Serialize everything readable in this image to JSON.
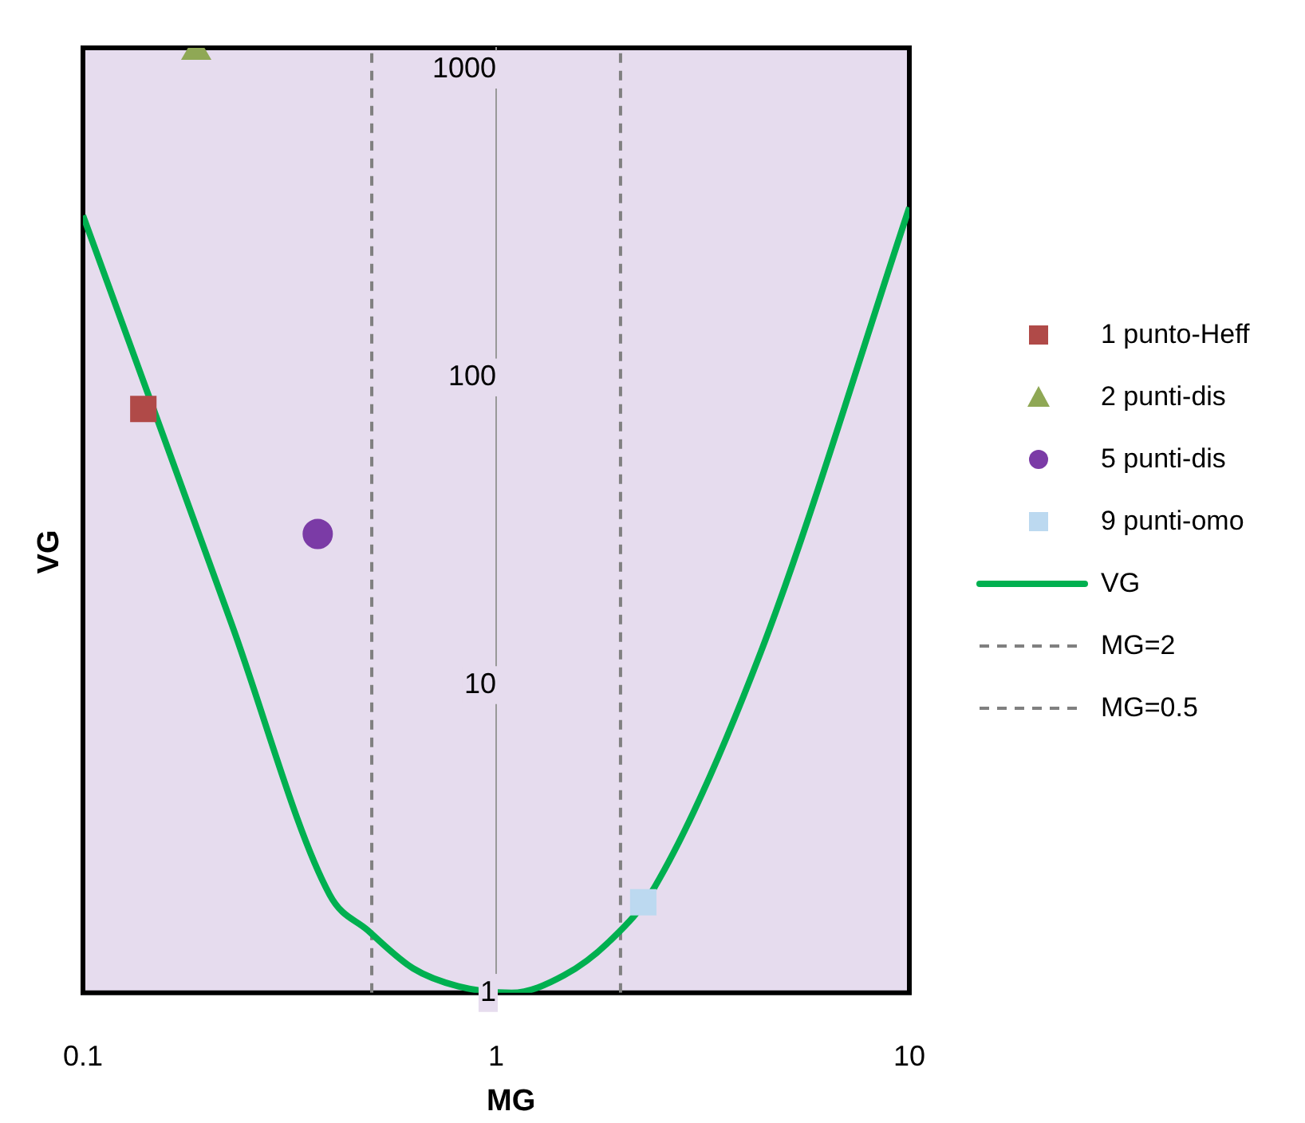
{
  "chart_data": {
    "type": "scatter",
    "xlabel": "MG",
    "ylabel": "VG",
    "log": "xy",
    "xlim": [
      0.1,
      10
    ],
    "xticks": [
      0.1,
      1,
      10
    ],
    "ylim": [
      1,
      1178
    ],
    "yticks": [
      1,
      10,
      100,
      1000
    ],
    "grid": false,
    "legend": "right",
    "series": [
      {
        "name": "1 punto-Heff",
        "type": "scatter",
        "marker": "square",
        "color": "#b04a48",
        "x": [
          0.14
        ],
        "values": [
          79
        ]
      },
      {
        "name": "2 punti-dis",
        "type": "scatter",
        "marker": "triangle",
        "color": "#8fa855",
        "x": [
          0.188
        ],
        "values": [
          1150
        ]
      },
      {
        "name": "5 punti-dis",
        "type": "scatter",
        "marker": "circle",
        "color": "#7b3ba6",
        "x": [
          0.37
        ],
        "values": [
          31
        ]
      },
      {
        "name": "9 punti-omo",
        "type": "scatter",
        "marker": "square",
        "color": "#bcd9f0",
        "x": [
          2.27
        ],
        "values": [
          1.97
        ]
      },
      {
        "name": "VG",
        "type": "line",
        "marker": "none",
        "color": "#00b050",
        "x": [
          0.1,
          0.15,
          0.229,
          0.395,
          0.488,
          0.63,
          0.81,
          1.09,
          1.46,
          1.88,
          2.42,
          4.37,
          10
        ],
        "values": [
          336,
          75.5,
          15.8,
          2.09,
          1.6,
          1.2,
          1.05,
          1.0,
          1.14,
          1.47,
          2.21,
          12.8,
          357
        ]
      },
      {
        "name": "MG=2",
        "type": "line",
        "marker": "none",
        "line_style": "dashed",
        "color": "#808080",
        "x": [
          2,
          2
        ],
        "values": [
          1,
          1178
        ]
      },
      {
        "name": "MG=0.5",
        "type": "line",
        "marker": "none",
        "line_style": "dashed",
        "color": "#808080",
        "x": [
          0.5,
          0.5
        ],
        "values": [
          1,
          1178
        ]
      }
    ]
  }
}
